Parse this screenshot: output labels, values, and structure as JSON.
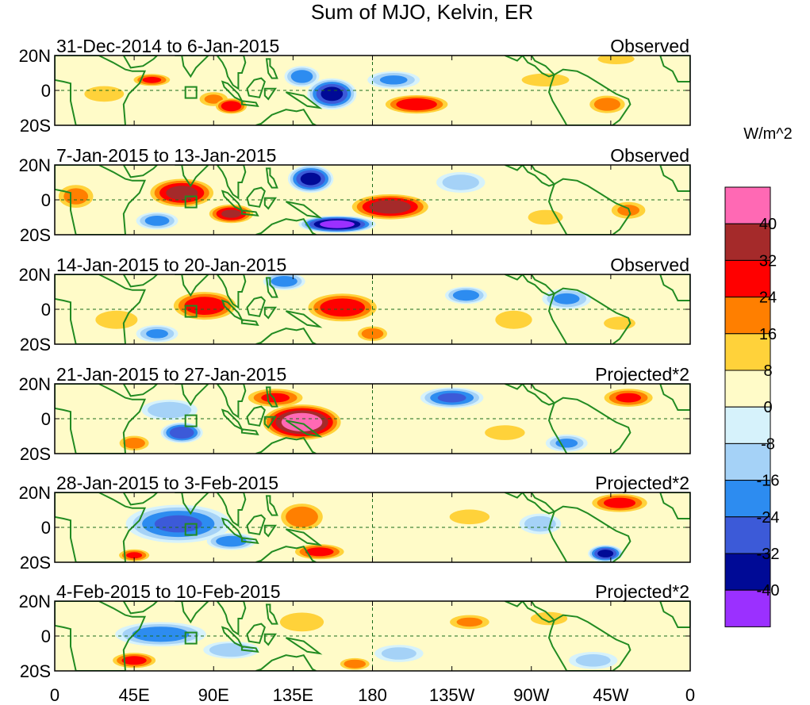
{
  "chart_data": {
    "type": "heatmap",
    "title": "Sum of MJO, Kelvin, ER",
    "units": "W/m^2",
    "x_tick_labels": [
      "0",
      "45E",
      "90E",
      "135E",
      "180",
      "135W",
      "90W",
      "45W",
      "0"
    ],
    "y_tick_labels": [
      "20N",
      "0",
      "20S"
    ],
    "lon_range": [
      0,
      360
    ],
    "lat_range": [
      -20,
      20
    ],
    "colorbar": {
      "labels": [
        "40",
        "32",
        "24",
        "16",
        "8",
        "0",
        "-8",
        "-16",
        "-24",
        "-32",
        "-40"
      ],
      "colors": [
        "#ff69b4",
        "#a52a2a",
        "#ff0000",
        "#ff7f00",
        "#ffd23a",
        "#fffbc8",
        "#d6f2fb",
        "#a5d2f7",
        "#2d8cf0",
        "#3c5ad8",
        "#000a96",
        "#9b30ff"
      ]
    },
    "panels": [
      {
        "period": "31-Dec-2014 to 6-Jan-2015",
        "status": "Observed",
        "anomalies": [
          {
            "lon": 55,
            "lat": 6,
            "value": 24,
            "rlon": 12,
            "rlat": 4
          },
          {
            "lon": 90,
            "lat": -5,
            "value": 16,
            "rlon": 10,
            "rlat": 5
          },
          {
            "lon": 100,
            "lat": -9,
            "value": 30,
            "rlon": 10,
            "rlat": 5
          },
          {
            "lon": 28,
            "lat": -2,
            "value": 12,
            "rlon": 15,
            "rlat": 6
          },
          {
            "lon": 157,
            "lat": -2,
            "value": -34,
            "rlon": 14,
            "rlat": 9
          },
          {
            "lon": 140,
            "lat": 8,
            "value": -20,
            "rlon": 10,
            "rlat": 6
          },
          {
            "lon": 205,
            "lat": -8,
            "value": 30,
            "rlon": 20,
            "rlat": 6
          },
          {
            "lon": 192,
            "lat": 6,
            "value": -16,
            "rlon": 15,
            "rlat": 5
          },
          {
            "lon": 278,
            "lat": 6,
            "value": 12,
            "rlon": 18,
            "rlat": 5
          },
          {
            "lon": 313,
            "lat": -8,
            "value": 20,
            "rlon": 12,
            "rlat": 6
          },
          {
            "lon": 318,
            "lat": 18,
            "value": 12,
            "rlon": 14,
            "rlat": 4
          }
        ]
      },
      {
        "period": "7-Jan-2015 to 13-Jan-2015",
        "status": "Observed",
        "anomalies": [
          {
            "lon": 72,
            "lat": 4,
            "value": 34,
            "rlon": 20,
            "rlat": 9
          },
          {
            "lon": 100,
            "lat": -8,
            "value": 32,
            "rlon": 14,
            "rlat": 6
          },
          {
            "lon": 12,
            "lat": 2,
            "value": 18,
            "rlon": 12,
            "rlat": 8
          },
          {
            "lon": 145,
            "lat": 12,
            "value": -34,
            "rlon": 13,
            "rlat": 8
          },
          {
            "lon": 160,
            "lat": -14,
            "value": -44,
            "rlon": 22,
            "rlat": 5
          },
          {
            "lon": 190,
            "lat": -4,
            "value": 36,
            "rlon": 24,
            "rlat": 8
          },
          {
            "lon": 58,
            "lat": -12,
            "value": -18,
            "rlon": 12,
            "rlat": 5
          },
          {
            "lon": 230,
            "lat": 10,
            "value": -12,
            "rlon": 14,
            "rlat": 6
          },
          {
            "lon": 278,
            "lat": -10,
            "value": 10,
            "rlon": 14,
            "rlat": 6
          },
          {
            "lon": 325,
            "lat": -6,
            "value": 16,
            "rlon": 12,
            "rlat": 6
          }
        ]
      },
      {
        "period": "14-Jan-2015 to 20-Jan-2015",
        "status": "Observed",
        "anomalies": [
          {
            "lon": 85,
            "lat": 2,
            "value": 30,
            "rlon": 20,
            "rlat": 9
          },
          {
            "lon": 163,
            "lat": 1,
            "value": 30,
            "rlon": 22,
            "rlat": 9
          },
          {
            "lon": 180,
            "lat": -14,
            "value": 20,
            "rlon": 10,
            "rlat": 5
          },
          {
            "lon": 130,
            "lat": 16,
            "value": -20,
            "rlon": 12,
            "rlat": 5
          },
          {
            "lon": 35,
            "lat": -6,
            "value": 12,
            "rlon": 16,
            "rlat": 7
          },
          {
            "lon": 58,
            "lat": -14,
            "value": -16,
            "rlon": 12,
            "rlat": 5
          },
          {
            "lon": 233,
            "lat": 8,
            "value": -20,
            "rlon": 12,
            "rlat": 5
          },
          {
            "lon": 260,
            "lat": -6,
            "value": 12,
            "rlon": 14,
            "rlat": 7
          },
          {
            "lon": 290,
            "lat": 6,
            "value": -16,
            "rlon": 14,
            "rlat": 6
          },
          {
            "lon": 320,
            "lat": -8,
            "value": 12,
            "rlon": 12,
            "rlat": 5
          }
        ]
      },
      {
        "period": "21-Jan-2015 to 27-Jan-2015",
        "status": "Projected*2",
        "anomalies": [
          {
            "lon": 140,
            "lat": -2,
            "value": 46,
            "rlon": 24,
            "rlat": 11
          },
          {
            "lon": 125,
            "lat": 12,
            "value": 24,
            "rlon": 18,
            "rlat": 6
          },
          {
            "lon": 45,
            "lat": -14,
            "value": 20,
            "rlon": 10,
            "rlat": 5
          },
          {
            "lon": 72,
            "lat": -8,
            "value": -30,
            "rlon": 12,
            "rlat": 6
          },
          {
            "lon": 65,
            "lat": 5,
            "value": -14,
            "rlon": 16,
            "rlat": 6
          },
          {
            "lon": 225,
            "lat": 12,
            "value": -24,
            "rlon": 18,
            "rlat": 6
          },
          {
            "lon": 325,
            "lat": 12,
            "value": 24,
            "rlon": 16,
            "rlat": 6
          },
          {
            "lon": 290,
            "lat": -14,
            "value": -16,
            "rlon": 12,
            "rlat": 5
          },
          {
            "lon": 255,
            "lat": -8,
            "value": 10,
            "rlon": 16,
            "rlat": 6
          }
        ]
      },
      {
        "period": "28-Jan-2015 to 3-Feb-2015",
        "status": "Projected*2",
        "anomalies": [
          {
            "lon": 140,
            "lat": 6,
            "value": 22,
            "rlon": 14,
            "rlat": 9
          },
          {
            "lon": 150,
            "lat": -14,
            "value": 26,
            "rlon": 16,
            "rlat": 5
          },
          {
            "lon": 45,
            "lat": -16,
            "value": 24,
            "rlon": 10,
            "rlat": 4
          },
          {
            "lon": 70,
            "lat": 2,
            "value": -24,
            "rlon": 30,
            "rlat": 11
          },
          {
            "lon": 100,
            "lat": -8,
            "value": -20,
            "rlon": 14,
            "rlat": 5
          },
          {
            "lon": 320,
            "lat": 14,
            "value": 26,
            "rlon": 18,
            "rlat": 6
          },
          {
            "lon": 312,
            "lat": -15,
            "value": -34,
            "rlon": 10,
            "rlat": 5
          },
          {
            "lon": 235,
            "lat": 6,
            "value": 10,
            "rlon": 16,
            "rlat": 6
          },
          {
            "lon": 275,
            "lat": 2,
            "value": -12,
            "rlon": 12,
            "rlat": 6
          }
        ]
      },
      {
        "period": "4-Feb-2015 to 10-Feb-2015",
        "status": "Projected*2",
        "anomalies": [
          {
            "lon": 45,
            "lat": -14,
            "value": 26,
            "rlon": 14,
            "rlat": 5
          },
          {
            "lon": 140,
            "lat": 8,
            "value": 14,
            "rlon": 16,
            "rlat": 7
          },
          {
            "lon": 170,
            "lat": -16,
            "value": 20,
            "rlon": 10,
            "rlat": 4
          },
          {
            "lon": 60,
            "lat": 1,
            "value": -20,
            "rlon": 26,
            "rlat": 7
          },
          {
            "lon": 100,
            "lat": -8,
            "value": -14,
            "rlon": 16,
            "rlat": 5
          },
          {
            "lon": 235,
            "lat": 8,
            "value": 16,
            "rlon": 14,
            "rlat": 5
          },
          {
            "lon": 280,
            "lat": 10,
            "value": 12,
            "rlon": 14,
            "rlat": 5
          },
          {
            "lon": 305,
            "lat": -14,
            "value": -10,
            "rlon": 14,
            "rlat": 5
          },
          {
            "lon": 195,
            "lat": -10,
            "value": -10,
            "rlon": 14,
            "rlat": 5
          }
        ]
      }
    ]
  }
}
